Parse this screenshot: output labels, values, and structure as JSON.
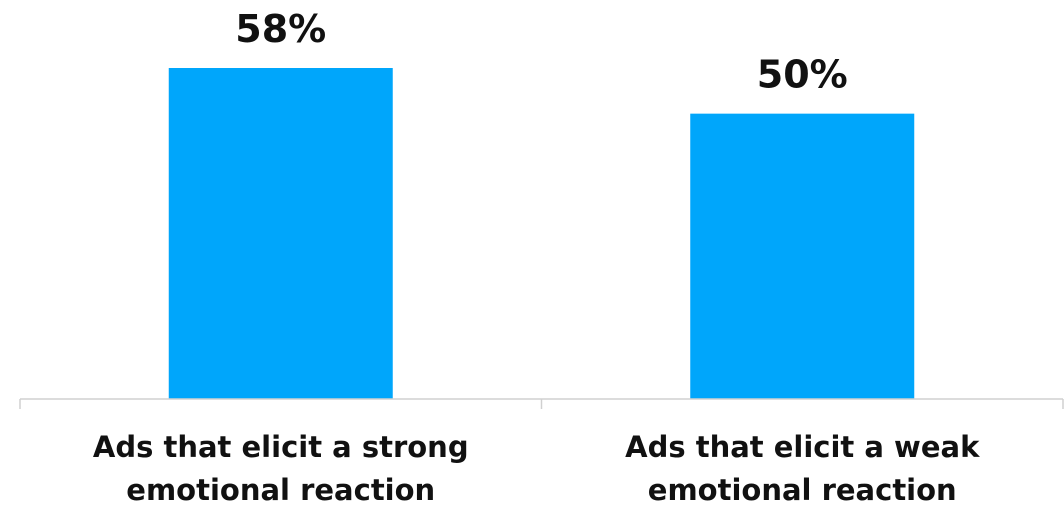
{
  "chart_data": {
    "type": "bar",
    "categories": [
      [
        "Ads that elicit a strong",
        "emotional reaction"
      ],
      [
        "Ads that elicit a weak",
        "emotional reaction"
      ]
    ],
    "values": [
      58,
      50
    ],
    "value_labels": [
      "58%",
      "50%"
    ],
    "title": "",
    "xlabel": "",
    "ylabel": "",
    "ylim": [
      0,
      58
    ],
    "grid": false,
    "legend": "none",
    "bar_color": "#00a6fb",
    "axis_color": "#d0d0d0",
    "text_color": "#111111"
  }
}
